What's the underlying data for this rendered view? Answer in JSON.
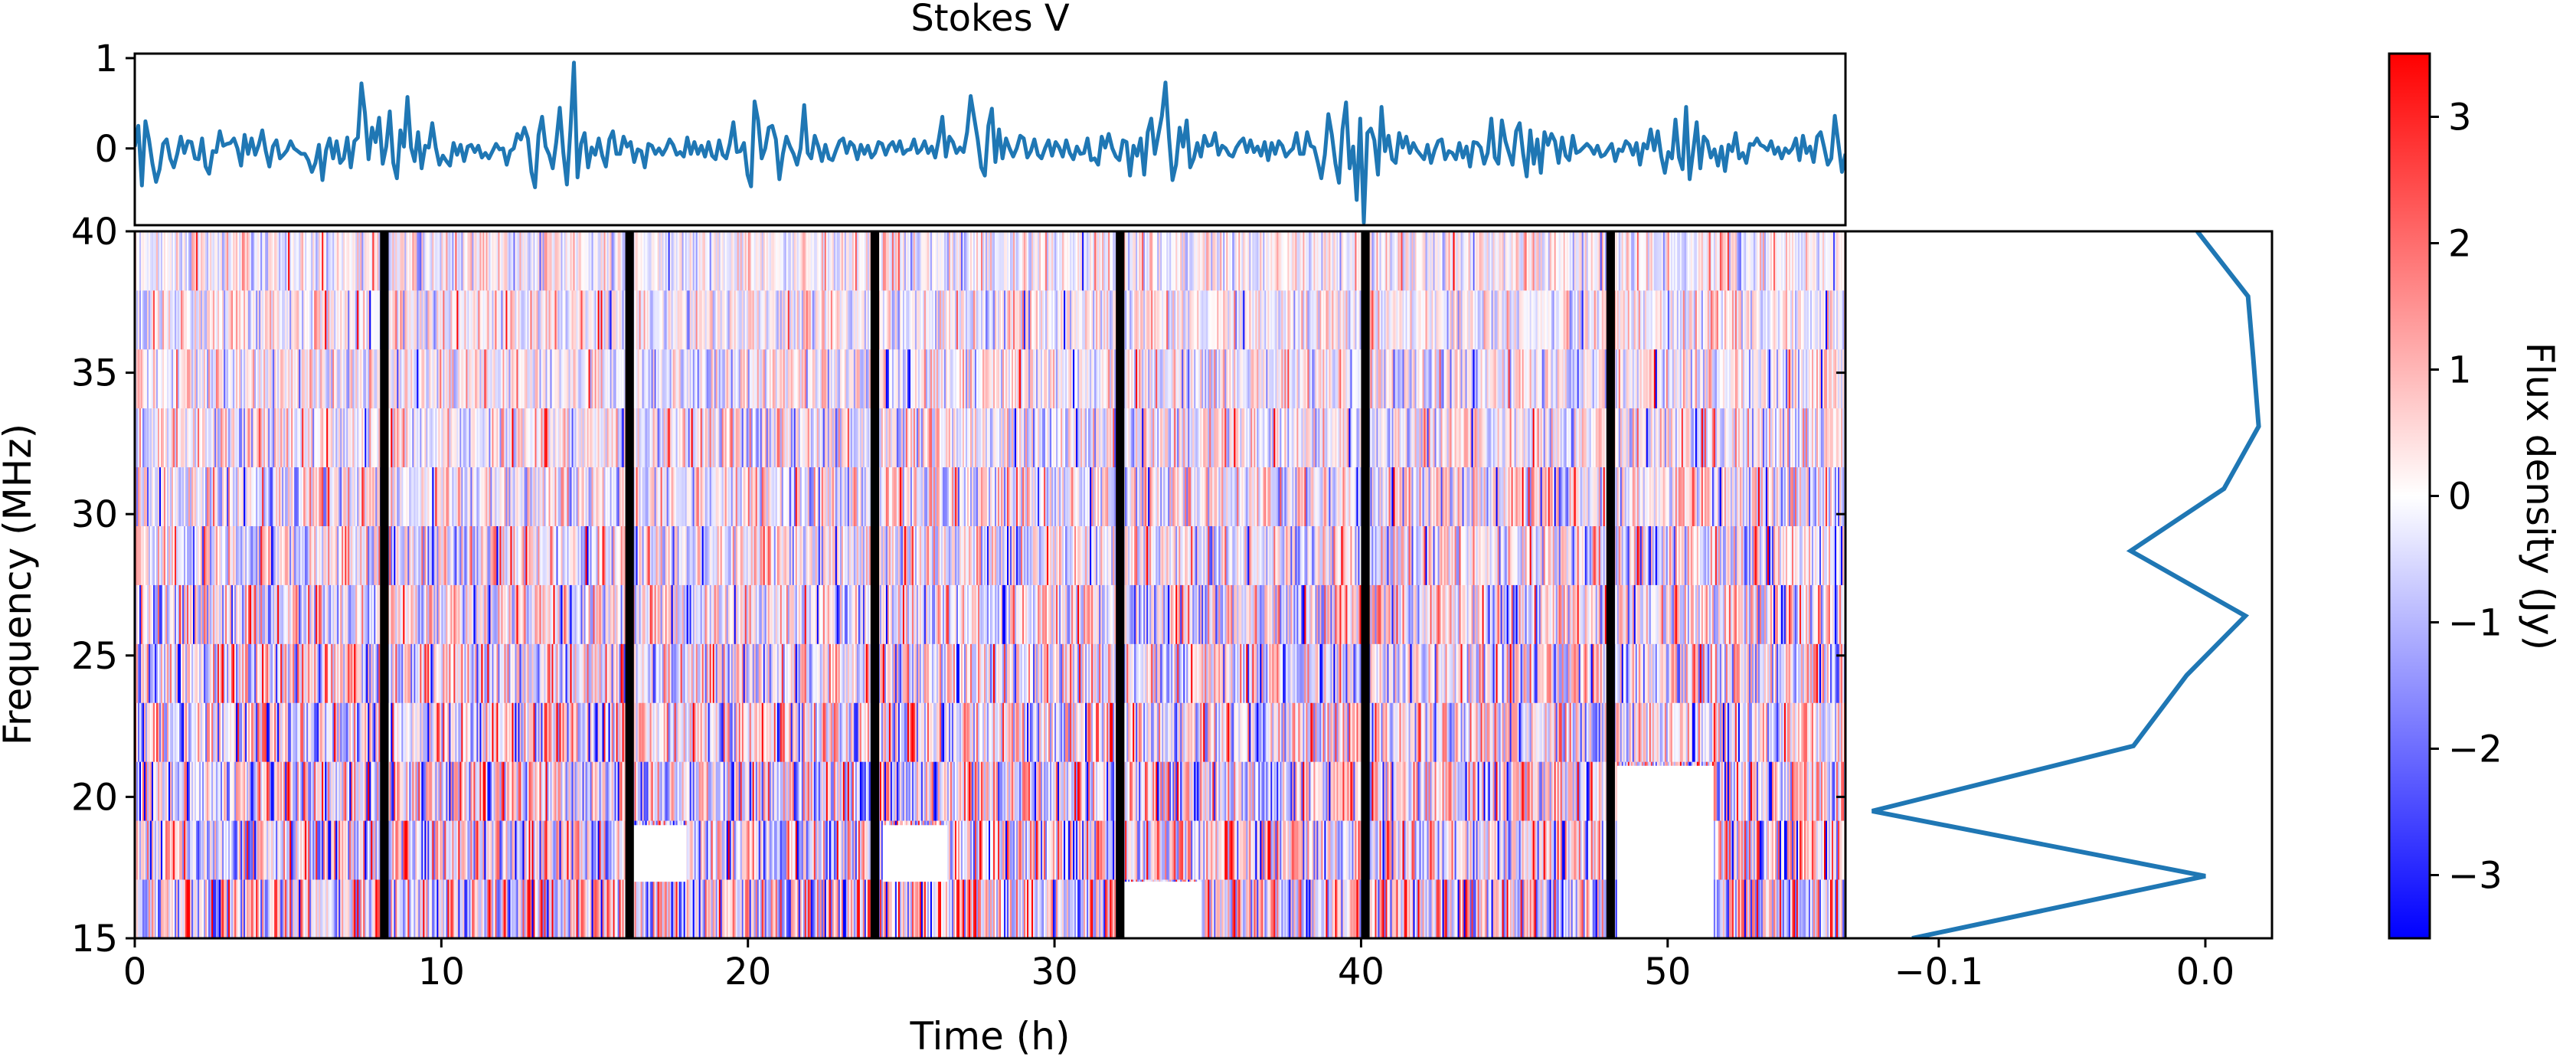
{
  "chart_data": [
    {
      "panel": "time-series",
      "type": "line",
      "title": "Stokes V",
      "xlim": [
        0,
        55.8
      ],
      "ylim": [
        -0.85,
        1.05
      ],
      "yticks": [
        1,
        0
      ],
      "ytick_labels": [
        "1",
        "0"
      ],
      "color": "#1f77b4",
      "x_start": 0,
      "x_end": 55.8,
      "values": [
        0.02,
        0.25,
        -0.41,
        0.3,
        0.1,
        -0.17,
        -0.37,
        -0.23,
        0.05,
        0.1,
        -0.11,
        -0.21,
        -0.06,
        0.13,
        -0.05,
        0.08,
        0.07,
        -0.11,
        -0.12,
        0.11,
        -0.2,
        -0.28,
        -0.03,
        -0.04,
        0.19,
        0.03,
        0.05,
        0.06,
        0.11,
        0.0,
        -0.19,
        0.15,
        -0.06,
        0.11,
        -0.07,
        0.04,
        0.2,
        -0.03,
        -0.2,
        0.02,
        0.09,
        -0.11,
        -0.07,
        -0.02,
        0.08,
        0.0,
        -0.03,
        -0.06,
        -0.06,
        -0.13,
        -0.26,
        -0.16,
        0.04,
        -0.35,
        -0.02,
        0.11,
        -0.11,
        0.08,
        -0.16,
        -0.11,
        0.12,
        -0.21,
        0.08,
        0.12,
        0.72,
        0.39,
        -0.12,
        0.23,
        0.07,
        0.34,
        -0.17,
        0.02,
        0.41,
        -0.16,
        -0.33,
        0.2,
        0.02,
        0.57,
        0.01,
        -0.14,
        0.18,
        -0.22,
        0.03,
        0.01,
        0.28,
        0.01,
        -0.18,
        -0.08,
        -0.14,
        -0.19,
        0.06,
        -0.07,
        0.04,
        -0.14,
        0.02,
        0.04,
        -0.04,
        0.03,
        -0.1,
        -0.05,
        -0.11,
        -0.03,
        0.05,
        -0.01,
        0.0,
        -0.18,
        -0.03,
        0.0,
        0.16,
        0.1,
        0.23,
        0.11,
        -0.26,
        -0.43,
        0.15,
        0.35,
        0.02,
        -0.07,
        -0.22,
        0.07,
        0.45,
        -0.05,
        -0.4,
        0.2,
        0.95,
        -0.32,
        0.05,
        0.17,
        -0.21,
        0.01,
        -0.07,
        0.11,
        -0.08,
        -0.2,
        0.1,
        0.19,
        -0.06,
        -0.06,
        0.13,
        0.02,
        0.07,
        -0.15,
        -0.01,
        -0.03,
        -0.21,
        0.05,
        0.03,
        -0.06,
        0.0,
        -0.07,
        0.0,
        0.1,
        0.04,
        -0.07,
        -0.04,
        -0.09,
        0.12,
        -0.06,
        0.07,
        -0.06,
        0.03,
        -0.09,
        0.07,
        -0.08,
        -0.12,
        0.09,
        -0.07,
        -0.11,
        0.05,
        0.29,
        -0.04,
        -0.03,
        0.06,
        -0.29,
        -0.42,
        0.52,
        0.31,
        -0.11,
        0.0,
        0.23,
        0.25,
        0.1,
        -0.34,
        -0.06,
        0.13,
        0.02,
        -0.06,
        -0.18,
        0.0,
        0.48,
        -0.05,
        -0.11,
        0.14,
        0.02,
        -0.14,
        0.04,
        -0.11,
        -0.13,
        -0.02,
        0.08,
        0.11,
        -0.05,
        0.07,
        0.03,
        -0.12,
        0.04,
        -0.06,
        0.03,
        -0.1,
        -0.05,
        0.07,
        0.05,
        -0.07,
        0.03,
        0.07,
        -0.03,
        0.08,
        -0.06,
        -0.02,
        -0.01,
        0.1,
        -0.05,
        -0.01,
        0.08,
        -0.05,
        0.02,
        -0.1,
        0.1,
        0.35,
        -0.09,
        0.13,
        0.07,
        -0.05,
        0.01,
        -0.04,
        0.18,
        0.58,
        0.34,
        0.1,
        -0.21,
        -0.3,
        0.25,
        0.44,
        -0.15,
        0.21,
        -0.11,
        0.11,
        0.0,
        -0.09,
        0.0,
        0.14,
        0.11,
        -0.1,
        -0.03,
        0.1,
        -0.07,
        -0.11,
        0.0,
        0.09,
        -0.08,
        0.07,
        0.01,
        -0.09,
        0.09,
        -0.05,
        -0.12,
        0.02,
        -0.06,
        -0.05,
        0.11,
        -0.13,
        -0.11,
        -0.18,
        0.13,
        0.01,
        0.16,
        0.0,
        -0.09,
        -0.13,
        0.09,
        0.07,
        -0.3,
        0.03,
        -0.08,
        0.11,
        -0.29,
        0.18,
        0.33,
        -0.06,
        0.15,
        0.36,
        0.73,
        0.12,
        -0.35,
        -0.18,
        0.23,
        0.02,
        0.31,
        -0.21,
        -0.11,
        0.06,
        -0.09,
        0.14,
        0.03,
        0.04,
        0.17,
        -0.07,
        0.03,
        0.0,
        -0.07,
        -0.09,
        0.01,
        0.07,
        0.11,
        -0.04,
        0.09,
        -0.04,
        0.02,
        -0.08,
        0.07,
        -0.13,
        0.06,
        -0.06,
        0.08,
        0.03,
        -0.09,
        -0.04,
        0.0,
        0.17,
        -0.06,
        -0.06,
        0.18,
        0.03,
        0.01,
        -0.15,
        -0.33,
        -0.07,
        0.38,
        0.15,
        -0.17,
        -0.38,
        0.21,
        0.51,
        -0.22,
        0.02,
        -0.57,
        0.33,
        -0.82,
        0.17,
        0.22,
        0.09,
        -0.29,
        0.46,
        -0.03,
        0.14,
        -0.12,
        -0.16,
        0.17,
        0.01,
        0.13,
        -0.05,
        0.06,
        -0.02,
        -0.07,
        -0.12,
        0.04,
        -0.16,
        -0.02,
        0.08,
        0.1,
        -0.12,
        -0.03,
        -0.05,
        -0.12,
        0.06,
        -0.1,
        0.02,
        -0.2,
        0.07,
        0.06,
        0.01,
        -0.17,
        -0.05,
        0.33,
        -0.1,
        -0.17,
        0.31,
        0.08,
        -0.05,
        -0.18,
        0.19,
        0.28,
        -0.06,
        -0.31,
        0.2,
        -0.17,
        0.1,
        -0.27,
        0.18,
        0.04,
        0.16,
        0.08,
        -0.16,
        0.12,
        -0.08,
        -0.13,
        0.14,
        -0.05,
        -0.03,
        0.01,
        0.05,
        0.01,
        -0.06,
        0.03,
        -0.09,
        -0.07,
        -0.01,
        0.05,
        -0.14,
        -0.01,
        -0.03,
        0.08,
        0.04,
        -0.07,
        0.06,
        -0.18,
        0.05,
        0.0,
        0.21,
        -0.02,
        0.19,
        -0.09,
        -0.27,
        -0.04,
        -0.11,
        0.32,
        -0.1,
        -0.23,
        0.46,
        -0.34,
        -0.03,
        0.29,
        -0.22,
        0.13,
        0.08,
        -0.1,
        -0.01,
        -0.19,
        0.02,
        -0.25,
        0.04,
        -0.03,
        0.17,
        -0.11,
        -0.05,
        -0.16,
        0.05,
        0.04,
        0.11,
        0.04,
        0.02,
        -0.02,
        0.08,
        -0.06,
        0.01,
        -0.11,
        0.0,
        -0.05,
        0.0,
        0.11,
        -0.13,
        0.14,
        -0.05,
        0.02,
        -0.15,
        0.13,
        0.18,
        0.01,
        -0.18,
        -0.11,
        0.36,
        0.06,
        -0.26,
        -0.06
      ]
    },
    {
      "panel": "dynamic-spectrum",
      "type": "heatmap",
      "xlabel": "Time (h)",
      "ylabel": "Frequency (MHz)",
      "xlim": [
        0,
        55.8
      ],
      "ylim": [
        15,
        40
      ],
      "xticks": [
        0,
        10,
        20,
        30,
        40,
        50
      ],
      "xtick_labels": [
        "0",
        "10",
        "20",
        "30",
        "40",
        "50"
      ],
      "yticks": [
        15,
        20,
        25,
        30,
        35,
        40
      ],
      "ytick_labels": [
        "15",
        "20",
        "25",
        "30",
        "35",
        "40"
      ],
      "colormap": "bwr",
      "color_limits": [
        -3.5,
        3.5
      ],
      "n_channels": 12,
      "n_time_bins": 1116,
      "flagged_time_h": [
        8.0,
        16.0,
        24.0,
        32.0,
        40.0,
        48.0
      ],
      "flagged_width_h": 0.28,
      "flagged_color": "#000000",
      "blank_regions": [
        {
          "t_start": 48.35,
          "t_end": 51.5,
          "f_start": 15,
          "f_end": 21.1
        },
        {
          "t_start": 32.0,
          "t_end": 34.8,
          "f_start": 15,
          "f_end": 17.0
        },
        {
          "t_start": 24.4,
          "t_end": 26.5,
          "f_start": 17.0,
          "f_end": 19.0
        },
        {
          "t_start": 16.2,
          "t_end": 18.0,
          "f_start": 17.0,
          "f_end": 19.0
        }
      ],
      "seed": 4321
    },
    {
      "panel": "frequency-profile",
      "type": "line",
      "xlim": [
        -0.135,
        0.025
      ],
      "ylim": [
        15,
        40
      ],
      "xticks": [
        -0.1,
        0.0
      ],
      "xtick_labels": [
        "−0.1",
        "0.0"
      ],
      "color": "#1f77b4",
      "points": [
        {
          "x": -0.11,
          "y": 15.0
        },
        {
          "x": -0.0,
          "y": 17.2
        },
        {
          "x": -0.125,
          "y": 19.5
        },
        {
          "x": -0.027,
          "y": 21.8
        },
        {
          "x": -0.007,
          "y": 24.3
        },
        {
          "x": 0.015,
          "y": 26.4
        },
        {
          "x": -0.028,
          "y": 28.7
        },
        {
          "x": 0.007,
          "y": 30.9
        },
        {
          "x": 0.02,
          "y": 33.1
        },
        {
          "x": 0.018,
          "y": 35.5
        },
        {
          "x": 0.016,
          "y": 37.7
        },
        {
          "x": -0.003,
          "y": 40.0
        }
      ]
    },
    {
      "panel": "colorbar",
      "type": "colorbar",
      "label": "Flux density (Jy)",
      "limits": [
        -3.5,
        3.5
      ],
      "ticks": [
        3,
        2,
        1,
        0,
        -1,
        -2,
        -3
      ],
      "tick_labels": [
        "3",
        "2",
        "1",
        "0",
        "−1",
        "−2",
        "−3"
      ],
      "colors": [
        "#0000ff",
        "#ffffff",
        "#ff0000"
      ]
    }
  ]
}
